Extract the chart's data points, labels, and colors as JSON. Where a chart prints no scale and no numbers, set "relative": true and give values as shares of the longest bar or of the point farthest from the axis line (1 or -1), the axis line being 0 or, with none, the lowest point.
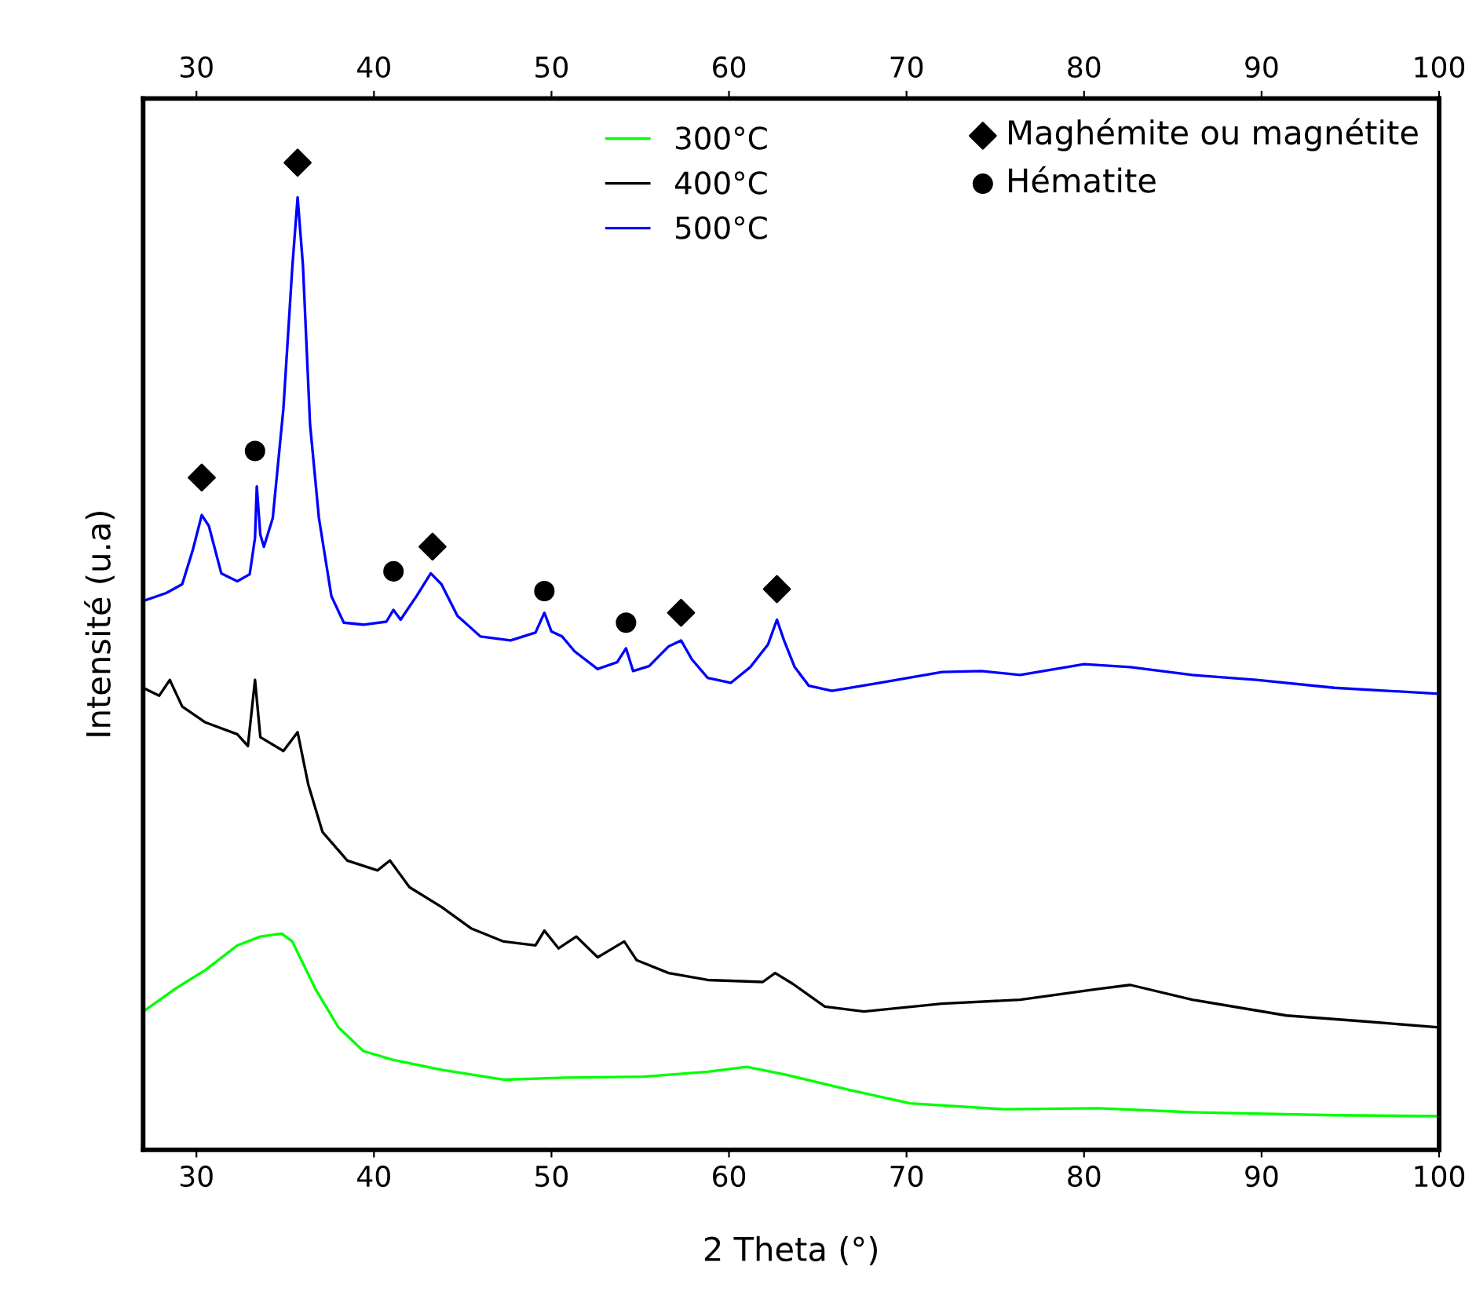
{
  "chart_data": {
    "type": "line",
    "relative": true,
    "xlabel": "2 Theta (°)",
    "ylabel": "Intensité (u.a)",
    "xlim": [
      27,
      100
    ],
    "xticks": [
      30,
      40,
      50,
      60,
      70,
      80,
      90,
      100
    ],
    "x2lim": [
      27,
      100
    ],
    "x2ticks": [
      30,
      40,
      50,
      60,
      70,
      80,
      90,
      100
    ],
    "legend": "top",
    "grid": false,
    "tick_labels": "x",
    "series": [
      {
        "name": "300°C",
        "color": "#00ff00",
        "x": [
          27,
          28.8,
          30.5,
          32.3,
          33.6,
          34.8,
          35.4,
          36.7,
          38.0,
          39.4,
          41.1,
          43.8,
          47.3,
          50.8,
          55.2,
          58.8,
          61.0,
          63.2,
          66.7,
          70.2,
          75.5,
          80.8,
          86.1,
          94.1,
          100
        ],
        "values": [
          0.14,
          0.163,
          0.182,
          0.207,
          0.216,
          0.219,
          0.211,
          0.163,
          0.124,
          0.1,
          0.091,
          0.081,
          0.071,
          0.073,
          0.074,
          0.079,
          0.084,
          0.076,
          0.061,
          0.047,
          0.041,
          0.042,
          0.038,
          0.035,
          0.034
        ]
      },
      {
        "name": "400°C",
        "color": "#000000",
        "x": [
          27,
          27.9,
          28.5,
          29.2,
          30.5,
          32.3,
          32.9,
          33.3,
          33.6,
          34.9,
          35.7,
          36.3,
          37.1,
          38.5,
          40.2,
          40.9,
          42.0,
          43.8,
          45.5,
          47.3,
          49.1,
          49.6,
          50.4,
          51.4,
          52.6,
          54.1,
          54.8,
          56.6,
          58.8,
          61.9,
          62.6,
          63.6,
          65.4,
          67.6,
          72.0,
          76.4,
          80.8,
          82.6,
          86.1,
          91.4,
          95.8,
          100
        ],
        "values": [
          0.468,
          0.46,
          0.476,
          0.449,
          0.433,
          0.421,
          0.409,
          0.476,
          0.418,
          0.404,
          0.423,
          0.37,
          0.322,
          0.293,
          0.283,
          0.293,
          0.266,
          0.246,
          0.224,
          0.211,
          0.207,
          0.222,
          0.204,
          0.216,
          0.195,
          0.211,
          0.192,
          0.179,
          0.172,
          0.17,
          0.179,
          0.168,
          0.145,
          0.14,
          0.148,
          0.152,
          0.163,
          0.167,
          0.152,
          0.136,
          0.13,
          0.124
        ]
      },
      {
        "name": "500°C",
        "color": "#0000ff",
        "x": [
          27.0,
          28.3,
          29.2,
          29.8,
          30.3,
          30.7,
          31.4,
          32.3,
          33.0,
          33.3,
          33.4,
          33.6,
          33.8,
          34.3,
          34.9,
          35.4,
          35.7,
          36.0,
          36.4,
          36.9,
          37.6,
          38.3,
          39.4,
          40.7,
          41.1,
          41.5,
          42.4,
          43.2,
          43.8,
          44.7,
          46.0,
          47.7,
          49.1,
          49.6,
          50.0,
          50.6,
          51.3,
          52.6,
          53.7,
          54.2,
          54.6,
          55.5,
          56.6,
          57.3,
          57.9,
          58.8,
          60.1,
          61.2,
          62.2,
          62.7,
          63.1,
          63.7,
          64.5,
          65.8,
          68.5,
          72.0,
          74.2,
          76.4,
          80.0,
          82.6,
          86.1,
          89.7,
          94.1,
          100
        ],
        "values": [
          0.556,
          0.564,
          0.573,
          0.608,
          0.643,
          0.632,
          0.584,
          0.576,
          0.583,
          0.62,
          0.672,
          0.623,
          0.611,
          0.64,
          0.751,
          0.894,
          0.965,
          0.896,
          0.735,
          0.64,
          0.561,
          0.534,
          0.532,
          0.535,
          0.547,
          0.537,
          0.561,
          0.584,
          0.573,
          0.541,
          0.52,
          0.516,
          0.524,
          0.544,
          0.525,
          0.52,
          0.505,
          0.487,
          0.494,
          0.508,
          0.485,
          0.49,
          0.51,
          0.516,
          0.497,
          0.478,
          0.473,
          0.489,
          0.512,
          0.537,
          0.516,
          0.489,
          0.47,
          0.465,
          0.473,
          0.484,
          0.485,
          0.481,
          0.492,
          0.489,
          0.481,
          0.476,
          0.468,
          0.462
        ]
      },
      {
        "name": "Maghémite ou magnétite",
        "type": "scatter",
        "marker": "diamond",
        "color": "#000000",
        "x": [
          30.3,
          35.7,
          43.3,
          57.3,
          62.7
        ],
        "values": [
          0.681,
          1.0,
          0.611,
          0.544,
          0.568
        ]
      },
      {
        "name": "Hématite",
        "type": "scatter",
        "marker": "circle",
        "color": "#000000",
        "x": [
          33.3,
          41.1,
          49.6,
          54.2
        ],
        "values": [
          0.708,
          0.586,
          0.566,
          0.534
        ]
      }
    ]
  }
}
